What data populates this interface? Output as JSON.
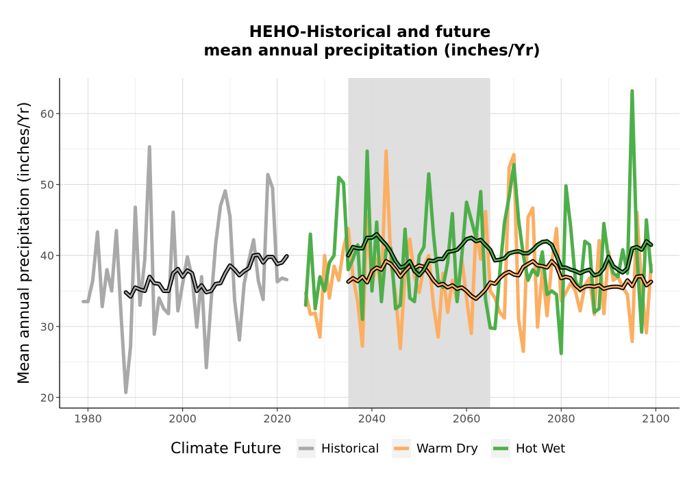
{
  "chart_data": {
    "type": "line",
    "title_line1": "HEHO-Historical and future",
    "title_line2": "mean annual precipitation (inches/Yr)",
    "xlabel": "",
    "ylabel": "Mean annual precipitation (inches/Yr)",
    "xlim": [
      1974,
      2105
    ],
    "ylim": [
      18.5,
      65
    ],
    "x_ticks": [
      1980,
      2000,
      2020,
      2040,
      2060,
      2080,
      2100
    ],
    "x_tick_labels": [
      "1980",
      "2000",
      "2020",
      "2040",
      "2060",
      "2080",
      "2100"
    ],
    "y_ticks": [
      20,
      30,
      40,
      50,
      60
    ],
    "y_tick_labels": [
      "20",
      "30",
      "40",
      "50",
      "60"
    ],
    "grid": true,
    "legend_placement": "bottom",
    "legend_title": "Climate Future",
    "shaded_period": [
      2035,
      2065
    ],
    "colors": {
      "historical": "#a9a9a9",
      "warm_dry": "#fdae61",
      "hot_wet": "#4daf4a",
      "shade": "#dcdcdc",
      "grid": "#dedede",
      "axis": "#000000",
      "rolling": "#000000"
    },
    "series": [
      {
        "name": "Historical",
        "key": "historical",
        "x": [
          1979,
          1980,
          1981,
          1982,
          1983,
          1984,
          1985,
          1986,
          1987,
          1988,
          1989,
          1990,
          1991,
          1992,
          1993,
          1994,
          1995,
          1996,
          1997,
          1998,
          1999,
          2000,
          2001,
          2002,
          2003,
          2004,
          2005,
          2006,
          2007,
          2008,
          2009,
          2010,
          2011,
          2012,
          2013,
          2014,
          2015,
          2016,
          2017,
          2018,
          2019,
          2020,
          2021,
          2022
        ],
        "values": [
          33.5,
          33.5,
          36.5,
          43.3,
          32.8,
          38.0,
          35.0,
          43.5,
          31.5,
          20.7,
          27.2,
          46.8,
          33.0,
          39.5,
          55.3,
          28.9,
          34.0,
          32.5,
          31.8,
          46.1,
          32.2,
          36.0,
          39.8,
          37.0,
          29.9,
          37.0,
          24.2,
          33.5,
          41.8,
          47.0,
          49.1,
          45.5,
          33.6,
          28.1,
          36.0,
          39.3,
          42.2,
          36.4,
          33.8,
          51.4,
          49.5,
          36.3,
          36.8,
          36.6
        ],
        "rolling_x": [
          1988,
          1989,
          1990,
          1991,
          1992,
          1993,
          1994,
          1995,
          1996,
          1997,
          1998,
          1999,
          2000,
          2001,
          2002,
          2003,
          2004,
          2005,
          2006,
          2007,
          2008,
          2009,
          2010,
          2011,
          2012,
          2013,
          2014,
          2015,
          2016,
          2017,
          2018,
          2019,
          2020,
          2021,
          2022
        ],
        "rolling": [
          34.8,
          34.2,
          35.5,
          35.2,
          35.0,
          37.0,
          36.1,
          36.0,
          35.0,
          35.0,
          37.5,
          38.1,
          37.0,
          37.9,
          37.5,
          35.0,
          35.8,
          34.8,
          35.0,
          36.0,
          36.1,
          37.5,
          38.6,
          38.0,
          37.2,
          37.8,
          38.2,
          40.0,
          40.1,
          39.0,
          39.8,
          39.8,
          38.8,
          39.0,
          39.9
        ]
      },
      {
        "name": "Warm Dry",
        "key": "warm_dry",
        "x": [
          2026,
          2027,
          2028,
          2029,
          2030,
          2031,
          2032,
          2033,
          2034,
          2035,
          2036,
          2037,
          2038,
          2039,
          2040,
          2041,
          2042,
          2043,
          2044,
          2045,
          2046,
          2047,
          2048,
          2049,
          2050,
          2051,
          2052,
          2053,
          2054,
          2055,
          2056,
          2057,
          2058,
          2059,
          2060,
          2061,
          2062,
          2063,
          2064,
          2065,
          2066,
          2067,
          2068,
          2069,
          2070,
          2071,
          2072,
          2073,
          2074,
          2075,
          2076,
          2077,
          2078,
          2079,
          2080,
          2081,
          2082,
          2083,
          2084,
          2085,
          2086,
          2087,
          2088,
          2089,
          2090,
          2091,
          2092,
          2093,
          2094,
          2095,
          2096,
          2097,
          2098,
          2099
        ],
        "values": [
          34.7,
          31.7,
          31.9,
          28.5,
          40.0,
          34.0,
          38.5,
          36.5,
          41.0,
          43.8,
          37.0,
          33.5,
          27.2,
          45.5,
          35.5,
          39.5,
          34.8,
          54.7,
          39.0,
          34.5,
          26.9,
          37.5,
          42.3,
          37.0,
          34.8,
          38.5,
          40.0,
          33.0,
          28.5,
          37.5,
          32.0,
          36.5,
          33.5,
          39.5,
          34.0,
          29.0,
          43.6,
          39.5,
          46.2,
          35.0,
          34.0,
          32.0,
          31.2,
          52.4,
          54.2,
          31.0,
          26.5,
          45.4,
          46.7,
          29.9,
          38.0,
          31.5,
          39.0,
          43.8,
          33.6,
          34.8,
          36.1,
          35.0,
          32.2,
          35.8,
          36.8,
          31.7,
          42.1,
          31.8,
          40.5,
          36.5,
          37.0,
          35.5,
          34.5,
          27.9,
          46.1,
          35.5,
          29.1,
          38.7
        ],
        "rolling_x": [
          2035,
          2036,
          2037,
          2038,
          2039,
          2040,
          2041,
          2042,
          2043,
          2044,
          2045,
          2046,
          2047,
          2048,
          2049,
          2050,
          2051,
          2052,
          2053,
          2054,
          2055,
          2056,
          2057,
          2058,
          2059,
          2060,
          2061,
          2062,
          2063,
          2064,
          2065,
          2066,
          2067,
          2068,
          2069,
          2070,
          2071,
          2072,
          2073,
          2074,
          2075,
          2076,
          2077,
          2078,
          2079,
          2080,
          2081,
          2082,
          2083,
          2084,
          2085,
          2086,
          2087,
          2088,
          2089,
          2090,
          2091,
          2092,
          2093,
          2094,
          2095,
          2096,
          2097,
          2098,
          2099
        ],
        "rolling": [
          36.3,
          36.8,
          36.4,
          37.0,
          36.2,
          37.8,
          38.3,
          38.0,
          39.2,
          38.8,
          38.0,
          37.0,
          37.8,
          38.5,
          38.2,
          38.6,
          38.4,
          37.5,
          36.5,
          35.8,
          36.0,
          35.5,
          35.8,
          35.3,
          35.5,
          35.0,
          34.3,
          33.9,
          34.5,
          35.2,
          36.2,
          36.0,
          36.8,
          37.4,
          37.7,
          37.3,
          37.2,
          38.4,
          38.8,
          39.2,
          38.6,
          38.5,
          38.3,
          39.2,
          38.5,
          36.8,
          37.0,
          36.8,
          35.8,
          35.2,
          35.6,
          35.7,
          35.6,
          35.8,
          35.3,
          35.5,
          35.6,
          35.6,
          35.4,
          36.5,
          35.7,
          37.0,
          37.1,
          35.8,
          36.3
        ]
      },
      {
        "name": "Hot Wet",
        "key": "hot_wet",
        "x": [
          2026,
          2027,
          2028,
          2029,
          2030,
          2031,
          2032,
          2033,
          2034,
          2035,
          2036,
          2037,
          2038,
          2039,
          2040,
          2041,
          2042,
          2043,
          2044,
          2045,
          2046,
          2047,
          2048,
          2049,
          2050,
          2051,
          2052,
          2053,
          2054,
          2055,
          2056,
          2057,
          2058,
          2059,
          2060,
          2061,
          2062,
          2063,
          2064,
          2065,
          2066,
          2067,
          2068,
          2069,
          2070,
          2071,
          2072,
          2073,
          2074,
          2075,
          2076,
          2077,
          2078,
          2079,
          2080,
          2081,
          2082,
          2083,
          2084,
          2085,
          2086,
          2087,
          2088,
          2089,
          2090,
          2091,
          2092,
          2093,
          2094,
          2095,
          2096,
          2097,
          2098,
          2099
        ],
        "values": [
          33.0,
          43.0,
          32.5,
          37.0,
          35.0,
          39.0,
          40.0,
          51.0,
          50.2,
          38.0,
          39.5,
          41.5,
          31.0,
          54.7,
          35.0,
          44.7,
          33.5,
          40.8,
          41.0,
          32.5,
          33.0,
          43.7,
          34.0,
          33.5,
          40.0,
          41.2,
          51.5,
          43.0,
          36.5,
          35.5,
          39.0,
          45.9,
          33.5,
          40.0,
          47.5,
          45.0,
          42.5,
          49.0,
          33.8,
          29.8,
          29.7,
          37.5,
          44.6,
          48.3,
          52.8,
          45.0,
          40.0,
          36.5,
          38.0,
          37.2,
          40.5,
          34.5,
          35.0,
          34.5,
          26.2,
          49.8,
          44.0,
          36.5,
          35.0,
          42.0,
          41.5,
          32.0,
          32.5,
          44.5,
          39.5,
          37.5,
          37.0,
          40.8,
          37.5,
          63.2,
          40.2,
          29.2,
          45.0,
          37.7
        ],
        "rolling_x": [
          2035,
          2036,
          2037,
          2038,
          2039,
          2040,
          2041,
          2042,
          2043,
          2044,
          2045,
          2046,
          2047,
          2048,
          2049,
          2050,
          2051,
          2052,
          2053,
          2054,
          2055,
          2056,
          2057,
          2058,
          2059,
          2060,
          2061,
          2062,
          2063,
          2064,
          2065,
          2066,
          2067,
          2068,
          2069,
          2070,
          2071,
          2072,
          2073,
          2074,
          2075,
          2076,
          2077,
          2078,
          2079,
          2080,
          2081,
          2082,
          2083,
          2084,
          2085,
          2086,
          2087,
          2088,
          2089,
          2090,
          2091,
          2092,
          2093,
          2094,
          2095,
          2096,
          2097,
          2098,
          2099
        ],
        "rolling": [
          40.0,
          41.2,
          41.0,
          41.0,
          42.5,
          42.5,
          43.0,
          42.2,
          41.5,
          40.5,
          39.2,
          38.3,
          38.5,
          39.2,
          37.8,
          37.2,
          38.0,
          39.3,
          39.2,
          39.5,
          39.5,
          40.5,
          40.6,
          40.8,
          41.5,
          42.3,
          42.5,
          42.0,
          42.2,
          41.5,
          40.8,
          39.3,
          39.4,
          39.6,
          40.3,
          40.5,
          40.6,
          40.3,
          40.3,
          40.8,
          41.5,
          41.9,
          42.0,
          41.5,
          40.0,
          38.3,
          38.3,
          38.0,
          37.8,
          37.5,
          37.8,
          38.0,
          37.2,
          37.4,
          38.2,
          39.8,
          38.5,
          38.0,
          37.6,
          38.2,
          41.0,
          41.2,
          40.8,
          42.0,
          41.5
        ]
      }
    ]
  }
}
